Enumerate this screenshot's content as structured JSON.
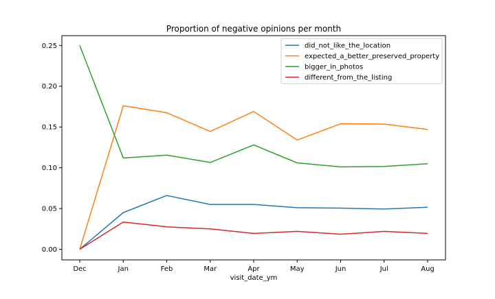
{
  "chart_data": {
    "type": "line",
    "title": "Proportion of negative opinions per month",
    "xlabel": "visit_date_ym",
    "ylabel": "",
    "categories": [
      "Dec",
      "Jan",
      "Feb",
      "Mar",
      "Apr",
      "May",
      "Jun",
      "Jul",
      "Aug"
    ],
    "ylim": [
      -0.013,
      0.262
    ],
    "yticks": [
      0.0,
      0.05,
      0.1,
      0.15,
      0.2,
      0.25
    ],
    "ytick_labels": [
      "0.00",
      "0.05",
      "0.10",
      "0.15",
      "0.20",
      "0.25"
    ],
    "grid": false,
    "legend_position": "top-right",
    "series": [
      {
        "name": "did_not_like_the_location",
        "color": "#1f77b4",
        "values": [
          0.0,
          0.045,
          0.066,
          0.055,
          0.055,
          0.051,
          0.0505,
          0.0495,
          0.0515
        ]
      },
      {
        "name": "expected_a_better_preserved_property",
        "color": "#ff7f0e",
        "values": [
          0.0,
          0.176,
          0.1675,
          0.1445,
          0.169,
          0.134,
          0.154,
          0.1535,
          0.147
        ]
      },
      {
        "name": "bigger_in_photos",
        "color": "#2ca02c",
        "values": [
          0.25,
          0.112,
          0.1155,
          0.1065,
          0.128,
          0.106,
          0.101,
          0.1015,
          0.105
        ]
      },
      {
        "name": "different_from_the_listing",
        "color": "#d62728",
        "values": [
          0.0,
          0.0335,
          0.0275,
          0.025,
          0.0195,
          0.022,
          0.0185,
          0.022,
          0.0195
        ]
      }
    ]
  }
}
